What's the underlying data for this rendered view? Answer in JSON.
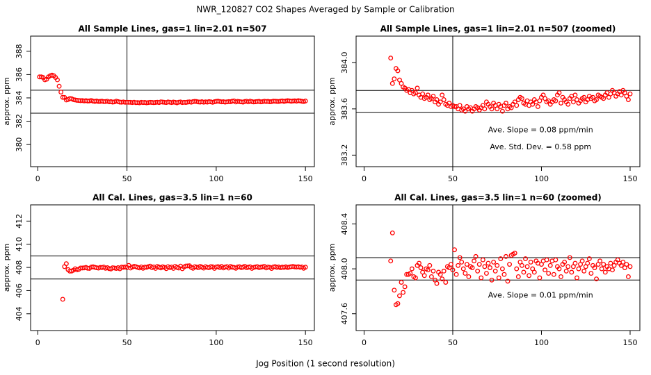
{
  "title": "NWR_120827  CO2 Shapes Averaged by Sample or Calibration",
  "xlabel": "Jog Position (1 second resolution)",
  "chart_data": [
    {
      "type": "scatter",
      "title": "All Sample Lines, gas=1 lin=2.01 n=507",
      "ylabel": "approx. ppm",
      "color": "#ff0000",
      "xlim": [
        -4,
        155
      ],
      "ylim": [
        378.1,
        389.3
      ],
      "xticks": [
        0,
        50,
        100,
        150
      ],
      "yticks": [
        380,
        382,
        384,
        386,
        388
      ],
      "hlines": [
        384.66,
        382.69
      ],
      "vline": 50,
      "x": [
        1,
        2,
        3,
        4,
        5,
        6,
        7,
        8,
        9,
        10,
        11,
        12,
        13,
        14,
        15,
        16,
        17,
        18,
        19,
        20,
        21,
        22,
        23,
        24,
        25,
        26,
        27,
        28,
        29,
        30,
        31,
        32,
        33,
        34,
        35,
        36,
        37,
        38,
        39,
        40,
        41,
        42,
        43,
        44,
        45,
        46,
        47,
        48,
        49,
        50,
        51,
        52,
        53,
        54,
        55,
        56,
        57,
        58,
        59,
        60,
        61,
        62,
        63,
        64,
        65,
        66,
        67,
        68,
        69,
        70,
        71,
        72,
        73,
        74,
        75,
        76,
        77,
        78,
        79,
        80,
        81,
        82,
        83,
        84,
        85,
        86,
        87,
        88,
        89,
        90,
        91,
        92,
        93,
        94,
        95,
        96,
        97,
        98,
        99,
        100,
        101,
        102,
        103,
        104,
        105,
        106,
        107,
        108,
        109,
        110,
        111,
        112,
        113,
        114,
        115,
        116,
        117,
        118,
        119,
        120,
        121,
        122,
        123,
        124,
        125,
        126,
        127,
        128,
        129,
        130,
        131,
        132,
        133,
        134,
        135,
        136,
        137,
        138,
        139,
        140,
        141,
        142,
        143,
        144,
        145,
        146,
        147,
        148,
        149,
        150
      ],
      "values": [
        385.8,
        385.8,
        385.75,
        385.55,
        385.6,
        385.8,
        385.9,
        385.95,
        385.9,
        385.75,
        385.55,
        385.0,
        384.5,
        384.05,
        384.04,
        383.82,
        383.86,
        383.95,
        383.93,
        383.85,
        383.82,
        383.79,
        383.78,
        383.76,
        383.77,
        383.74,
        383.76,
        383.73,
        383.74,
        383.78,
        383.72,
        383.7,
        383.73,
        383.69,
        383.7,
        383.72,
        383.68,
        383.69,
        383.71,
        383.66,
        383.68,
        383.64,
        383.66,
        383.72,
        383.68,
        383.64,
        383.63,
        383.65,
        383.62,
        383.63,
        383.62,
        383.62,
        383.6,
        383.63,
        383.59,
        383.6,
        383.58,
        383.62,
        383.6,
        383.61,
        383.58,
        383.6,
        383.62,
        383.61,
        383.59,
        383.61,
        383.63,
        383.6,
        383.66,
        383.64,
        383.62,
        383.6,
        383.65,
        383.63,
        383.6,
        383.64,
        383.62,
        383.58,
        383.63,
        383.65,
        383.6,
        383.62,
        383.61,
        383.64,
        383.66,
        383.63,
        383.68,
        383.7,
        383.69,
        383.65,
        383.64,
        383.67,
        383.63,
        383.66,
        383.64,
        383.68,
        383.66,
        383.62,
        383.67,
        383.7,
        383.72,
        383.69,
        383.66,
        383.67,
        383.64,
        383.66,
        383.68,
        383.67,
        383.72,
        383.74,
        383.65,
        383.7,
        383.68,
        383.66,
        383.64,
        383.69,
        383.71,
        383.66,
        383.72,
        383.68,
        383.65,
        383.67,
        383.69,
        383.7,
        383.66,
        383.68,
        383.71,
        383.69,
        383.7,
        383.67,
        383.68,
        383.72,
        383.71,
        383.7,
        383.69,
        383.72,
        383.74,
        383.7,
        383.73,
        383.76,
        383.74,
        383.71,
        383.73,
        383.75,
        383.72,
        383.76,
        383.74,
        383.71,
        383.68,
        383.73
      ]
    },
    {
      "type": "scatter",
      "title": "All Sample Lines, gas=1 lin=2.01 n=507 (zoomed)",
      "ylabel": "approx. ppm",
      "color": "#ff0000",
      "xlim": [
        -4.5,
        155.5
      ],
      "ylim": [
        383.1,
        384.23
      ],
      "xticks": [
        0,
        50,
        100,
        150
      ],
      "yticks": [
        {
          "value": 383.2,
          "label": "383.2"
        },
        {
          "value": 383.6,
          "label": "383.6"
        },
        {
          "value": 384.0,
          "label": "384.0"
        }
      ],
      "hlines": [
        383.76,
        383.57
      ],
      "vline": 50,
      "annotations": [
        "Ave. Slope =  0.08  ppm/min",
        "Ave. Std. Dev. =  0.58  ppm"
      ],
      "x": [
        15,
        16,
        17,
        18,
        19,
        20,
        21,
        22,
        23,
        24,
        25,
        26,
        27,
        28,
        29,
        30,
        31,
        32,
        33,
        34,
        35,
        36,
        37,
        38,
        39,
        40,
        41,
        42,
        43,
        44,
        45,
        46,
        47,
        48,
        49,
        50,
        51,
        52,
        53,
        54,
        55,
        56,
        57,
        58,
        59,
        60,
        61,
        62,
        63,
        64,
        65,
        66,
        67,
        68,
        69,
        70,
        71,
        72,
        73,
        74,
        75,
        76,
        77,
        78,
        79,
        80,
        81,
        82,
        83,
        84,
        85,
        86,
        87,
        88,
        89,
        90,
        91,
        92,
        93,
        94,
        95,
        96,
        97,
        98,
        99,
        100,
        101,
        102,
        103,
        104,
        105,
        106,
        107,
        108,
        109,
        110,
        111,
        112,
        113,
        114,
        115,
        116,
        117,
        118,
        119,
        120,
        121,
        122,
        123,
        124,
        125,
        126,
        127,
        128,
        129,
        130,
        131,
        132,
        133,
        134,
        135,
        136,
        137,
        138,
        139,
        140,
        141,
        142,
        143,
        144,
        145,
        146,
        147,
        148,
        149,
        150
      ],
      "values": [
        384.04,
        383.82,
        383.86,
        383.95,
        383.93,
        383.85,
        383.82,
        383.79,
        383.78,
        383.76,
        383.77,
        383.74,
        383.76,
        383.73,
        383.74,
        383.78,
        383.72,
        383.7,
        383.73,
        383.69,
        383.7,
        383.72,
        383.68,
        383.69,
        383.71,
        383.66,
        383.68,
        383.64,
        383.66,
        383.72,
        383.68,
        383.64,
        383.63,
        383.65,
        383.62,
        383.63,
        383.62,
        383.62,
        383.6,
        383.63,
        383.59,
        383.6,
        383.58,
        383.62,
        383.6,
        383.61,
        383.58,
        383.6,
        383.62,
        383.61,
        383.59,
        383.61,
        383.63,
        383.6,
        383.66,
        383.64,
        383.62,
        383.6,
        383.65,
        383.63,
        383.6,
        383.64,
        383.62,
        383.58,
        383.63,
        383.65,
        383.6,
        383.62,
        383.61,
        383.64,
        383.66,
        383.63,
        383.68,
        383.7,
        383.69,
        383.65,
        383.64,
        383.67,
        383.63,
        383.66,
        383.64,
        383.68,
        383.66,
        383.62,
        383.67,
        383.7,
        383.72,
        383.69,
        383.66,
        383.67,
        383.64,
        383.66,
        383.68,
        383.67,
        383.72,
        383.74,
        383.65,
        383.7,
        383.68,
        383.66,
        383.64,
        383.69,
        383.71,
        383.66,
        383.72,
        383.68,
        383.65,
        383.67,
        383.69,
        383.7,
        383.66,
        383.68,
        383.71,
        383.69,
        383.7,
        383.67,
        383.68,
        383.72,
        383.71,
        383.7,
        383.69,
        383.72,
        383.74,
        383.7,
        383.73,
        383.76,
        383.74,
        383.71,
        383.73,
        383.75,
        383.72,
        383.76,
        383.74,
        383.71,
        383.68,
        383.73
      ]
    },
    {
      "type": "scatter",
      "title": "All Cal. Lines, gas=3.5 lin=1 n=60",
      "ylabel": "approx. ppm",
      "color": "#ff0000",
      "xlim": [
        -4,
        155
      ],
      "ylim": [
        402.55,
        413.4
      ],
      "xticks": [
        0,
        50,
        100,
        150
      ],
      "yticks": [
        404,
        406,
        408,
        410,
        412
      ],
      "hlines": [
        408.99,
        407.0
      ],
      "vline": 50,
      "x": [
        14,
        15,
        16,
        17,
        18,
        19,
        20,
        21,
        22,
        23,
        24,
        25,
        26,
        27,
        28,
        29,
        30,
        31,
        32,
        33,
        34,
        35,
        36,
        37,
        38,
        39,
        40,
        41,
        42,
        43,
        44,
        45,
        46,
        47,
        48,
        49,
        50,
        51,
        52,
        53,
        54,
        55,
        56,
        57,
        58,
        59,
        60,
        61,
        62,
        63,
        64,
        65,
        66,
        67,
        68,
        69,
        70,
        71,
        72,
        73,
        74,
        75,
        76,
        77,
        78,
        79,
        80,
        81,
        82,
        83,
        84,
        85,
        86,
        87,
        88,
        89,
        90,
        91,
        92,
        93,
        94,
        95,
        96,
        97,
        98,
        99,
        100,
        101,
        102,
        103,
        104,
        105,
        106,
        107,
        108,
        109,
        110,
        111,
        112,
        113,
        114,
        115,
        116,
        117,
        118,
        119,
        120,
        121,
        122,
        123,
        124,
        125,
        126,
        127,
        128,
        129,
        130,
        131,
        132,
        133,
        134,
        135,
        136,
        137,
        138,
        139,
        140,
        141,
        142,
        143,
        144,
        145,
        146,
        147,
        148,
        149,
        150
      ],
      "values": [
        405.25,
        408.07,
        408.32,
        407.81,
        407.68,
        407.69,
        407.76,
        407.88,
        407.79,
        407.84,
        407.95,
        407.95,
        407.96,
        408.0,
        407.93,
        407.92,
        408.03,
        408.05,
        408.01,
        407.97,
        407.94,
        408.0,
        407.99,
        408.03,
        407.93,
        407.98,
        407.9,
        407.87,
        407.97,
        407.95,
        407.91,
        407.98,
        407.88,
        408.02,
        408.01,
        408.04,
        407.99,
        408.17,
        407.95,
        408.03,
        408.1,
        408.06,
        408.0,
        407.96,
        408.04,
        407.93,
        408.02,
        408.01,
        408.07,
        408.11,
        407.98,
        408.04,
        407.92,
        408.08,
        408.02,
        407.96,
        408.05,
        408.01,
        407.9,
        408.06,
        407.98,
        408.03,
        407.92,
        408.09,
        408.0,
        407.95,
        408.11,
        407.89,
        408.04,
        408.12,
        408.13,
        408.14,
        408.0,
        407.93,
        408.06,
        408.03,
        407.97,
        408.09,
        408.02,
        407.94,
        408.06,
        408.0,
        407.97,
        408.07,
        408.05,
        407.92,
        408.04,
        408.07,
        407.99,
        408.08,
        407.96,
        408.03,
        408.07,
        407.95,
        408.08,
        408.02,
        408.0,
        407.93,
        408.04,
        408.06,
        407.98,
        408.02,
        408.1,
        407.97,
        408.02,
        408.05,
        407.92,
        408.0,
        408.04,
        408.07,
        407.98,
        408.02,
        408.05,
        408.09,
        407.96,
        408.03,
        408.01,
        407.91,
        408.04,
        408.07,
        408.0,
        408.04,
        407.97,
        408.02,
        408.0,
        408.05,
        407.99,
        408.03,
        408.06,
        408.08,
        408.05,
        408.03,
        408.06,
        408.01,
        408.04,
        407.93,
        408.02
      ]
    },
    {
      "type": "scatter",
      "title": "All Cal. Lines, gas=3.5 lin=1 n=60 (zoomed)",
      "ylabel": "approx. ppm",
      "color": "#ff0000",
      "xlim": [
        -4.5,
        155.5
      ],
      "ylim": [
        407.45,
        408.57
      ],
      "xticks": [
        0,
        50,
        100,
        150
      ],
      "yticks": [
        {
          "value": 407.6,
          "label": "407.6"
        },
        {
          "value": 408.0,
          "label": "408.0"
        },
        {
          "value": 408.4,
          "label": "408.4"
        }
      ],
      "hlines": [
        408.1,
        407.9
      ],
      "vline": 50,
      "annotations": [
        "Ave. Slope =  0.01  ppm/min"
      ],
      "x": [
        15,
        16,
        17,
        18,
        19,
        20,
        21,
        22,
        23,
        24,
        25,
        26,
        27,
        28,
        29,
        30,
        31,
        32,
        33,
        34,
        35,
        36,
        37,
        38,
        39,
        40,
        41,
        42,
        43,
        44,
        45,
        46,
        47,
        48,
        49,
        50,
        51,
        52,
        53,
        54,
        55,
        56,
        57,
        58,
        59,
        60,
        61,
        62,
        63,
        64,
        65,
        66,
        67,
        68,
        69,
        70,
        71,
        72,
        73,
        74,
        75,
        76,
        77,
        78,
        79,
        80,
        81,
        82,
        83,
        84,
        85,
        86,
        87,
        88,
        89,
        90,
        91,
        92,
        93,
        94,
        95,
        96,
        97,
        98,
        99,
        100,
        101,
        102,
        103,
        104,
        105,
        106,
        107,
        108,
        109,
        110,
        111,
        112,
        113,
        114,
        115,
        116,
        117,
        118,
        119,
        120,
        121,
        122,
        123,
        124,
        125,
        126,
        127,
        128,
        129,
        130,
        131,
        132,
        133,
        134,
        135,
        136,
        137,
        138,
        139,
        140,
        141,
        142,
        143,
        144,
        145,
        146,
        147,
        148,
        149,
        150
      ],
      "values": [
        408.07,
        408.32,
        407.81,
        407.68,
        407.69,
        407.76,
        407.88,
        407.79,
        407.84,
        407.95,
        407.95,
        407.96,
        408.0,
        407.93,
        407.92,
        408.03,
        408.05,
        408.01,
        407.97,
        407.94,
        408.0,
        407.99,
        408.03,
        407.93,
        407.98,
        407.9,
        407.87,
        407.97,
        407.95,
        407.91,
        407.98,
        407.88,
        408.02,
        408.01,
        408.04,
        407.99,
        408.17,
        407.95,
        408.03,
        408.1,
        408.06,
        408.0,
        407.96,
        408.04,
        407.93,
        408.02,
        408.01,
        408.07,
        408.11,
        407.98,
        408.04,
        407.92,
        408.08,
        408.02,
        407.96,
        408.05,
        408.01,
        407.9,
        408.06,
        407.98,
        408.03,
        407.92,
        408.09,
        408.0,
        407.95,
        408.11,
        407.89,
        408.04,
        408.12,
        408.13,
        408.14,
        408.0,
        407.93,
        408.06,
        408.03,
        407.97,
        408.09,
        408.02,
        407.94,
        408.06,
        408.0,
        407.97,
        408.07,
        408.05,
        407.92,
        408.04,
        408.07,
        407.99,
        408.08,
        407.96,
        408.03,
        408.07,
        407.95,
        408.08,
        408.02,
        408.0,
        407.93,
        408.04,
        408.06,
        407.98,
        408.02,
        408.1,
        407.97,
        408.02,
        408.05,
        407.92,
        408.0,
        408.04,
        408.07,
        407.98,
        408.02,
        408.05,
        408.09,
        407.96,
        408.03,
        408.01,
        407.91,
        408.04,
        408.07,
        408.0,
        408.04,
        407.97,
        408.02,
        408.0,
        408.05,
        407.99,
        408.03,
        408.06,
        408.08,
        408.05,
        408.03,
        408.06,
        408.01,
        408.04,
        407.93,
        408.02
      ]
    }
  ]
}
